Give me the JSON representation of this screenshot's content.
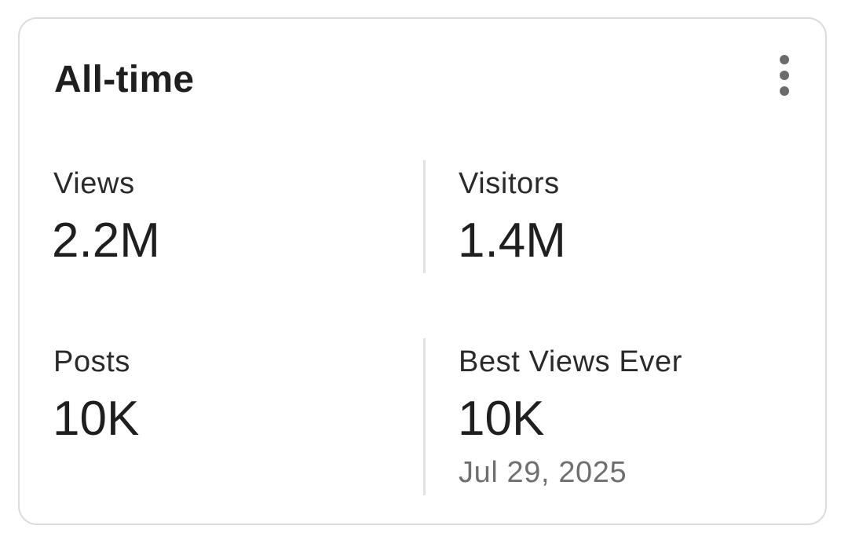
{
  "card": {
    "title": "All-time",
    "menu_icon": "more-vert-icon"
  },
  "stats": {
    "views": {
      "label": "Views",
      "value": "2.2M"
    },
    "visitors": {
      "label": "Visitors",
      "value": "1.4M"
    },
    "posts": {
      "label": "Posts",
      "value": "10K"
    },
    "best_views_ever": {
      "label": "Best Views Ever",
      "value": "10K",
      "date": "Jul 29, 2025"
    }
  }
}
